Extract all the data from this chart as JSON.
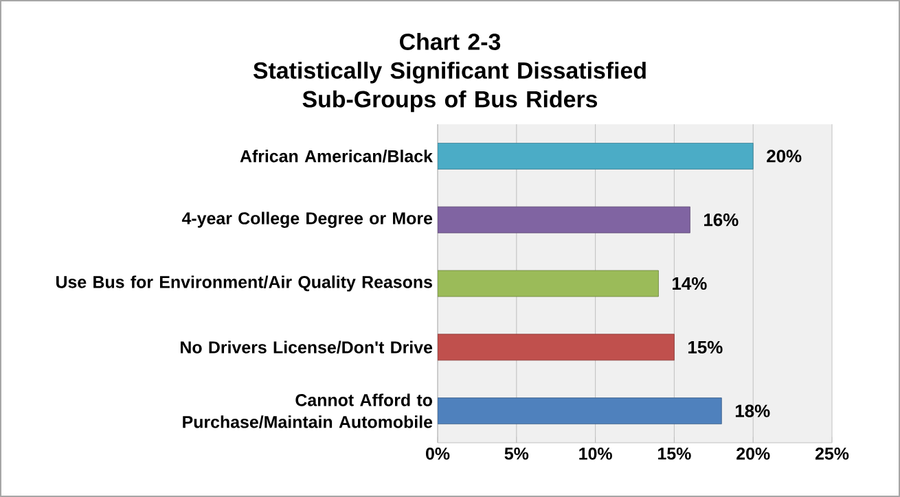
{
  "chart_data": {
    "type": "bar",
    "orientation": "horizontal",
    "title": "Chart 2-3",
    "subtitle": "Statistically Significant Dissatisfied Sub-Groups of Bus Riders",
    "categories": [
      "African American/Black",
      "4-year College Degree or More",
      "Use Bus for Environment/Air Quality Reasons",
      "No Drivers License/Don't Drive",
      "Cannot Afford to Purchase/Maintain Automobile"
    ],
    "values": [
      20,
      16,
      14,
      15,
      18
    ],
    "colors": [
      "#4bacc6",
      "#8064a2",
      "#9bbb59",
      "#c0504d",
      "#4f81bd"
    ],
    "value_labels": [
      "20%",
      "16%",
      "14%",
      "15%",
      "18%"
    ],
    "xlim": [
      0,
      25
    ],
    "xticks": [
      {
        "value": 0,
        "label": "0%"
      },
      {
        "value": 5,
        "label": "5%"
      },
      {
        "value": 10,
        "label": "10%"
      },
      {
        "value": 15,
        "label": "15%"
      },
      {
        "value": 20,
        "label": "20%"
      },
      {
        "value": 25,
        "label": "25%"
      }
    ],
    "grid": "x"
  }
}
